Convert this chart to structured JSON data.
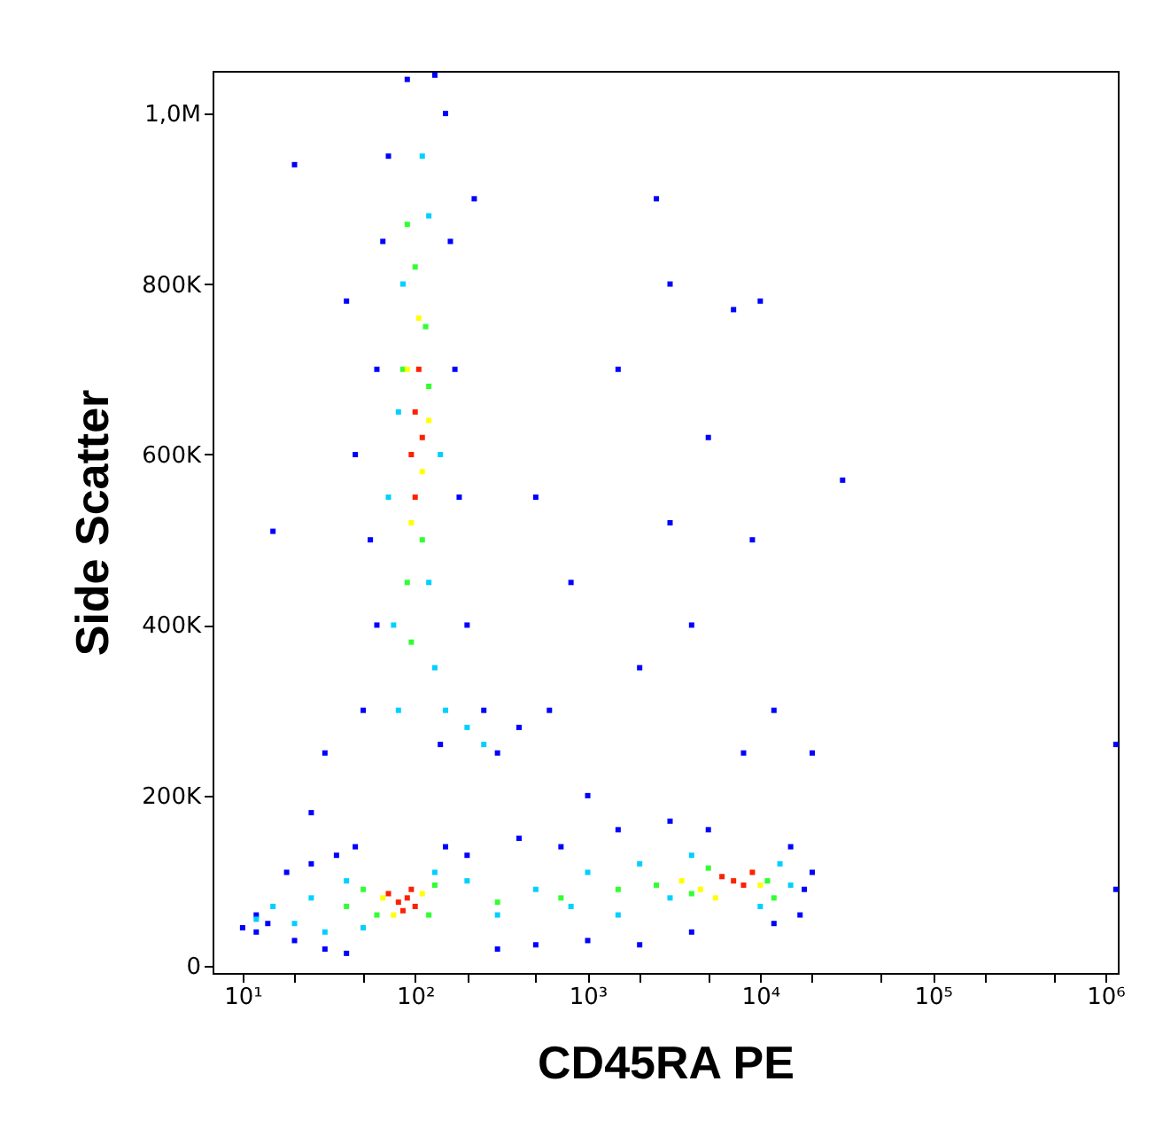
{
  "chart_data": {
    "type": "scatter",
    "xlabel": "CD45RA PE",
    "ylabel": "Side Scatter",
    "log": "x",
    "grid": false,
    "marker": "square",
    "xlim": [
      6.7,
      1180000
    ],
    "ylim": [
      -8000,
      1050000
    ],
    "xticks": [
      {
        "value": 10,
        "label": "10¹"
      },
      {
        "value": 20,
        "label": null
      },
      {
        "value": 50,
        "label": null
      },
      {
        "value": 100,
        "label": "10²"
      },
      {
        "value": 200,
        "label": null
      },
      {
        "value": 500,
        "label": null
      },
      {
        "value": 1000,
        "label": "10³"
      },
      {
        "value": 2000,
        "label": null
      },
      {
        "value": 5000,
        "label": null
      },
      {
        "value": 10000,
        "label": "10⁴"
      },
      {
        "value": 20000,
        "label": null
      },
      {
        "value": 50000,
        "label": null
      },
      {
        "value": 100000,
        "label": "10⁵"
      },
      {
        "value": 200000,
        "label": null
      },
      {
        "value": 500000,
        "label": null
      },
      {
        "value": 1000000,
        "label": "10⁶"
      }
    ],
    "yticks": [
      0,
      {
        "value": 200000,
        "label": "200K"
      },
      {
        "value": 400000,
        "label": "400K"
      },
      {
        "value": 600000,
        "label": "600K"
      },
      {
        "value": 800000,
        "label": "800K"
      },
      {
        "value": 1000000,
        "label": "1,0M"
      }
    ],
    "series": [
      {
        "color": "#0000ff",
        "x": [
          12,
          12,
          14,
          18,
          20,
          25,
          30,
          35,
          40,
          45,
          150,
          200,
          300,
          400,
          500,
          700,
          1000,
          1500,
          2000,
          3000,
          4000,
          5000,
          12000,
          15000,
          18000,
          20000,
          17000,
          10,
          50,
          55,
          60,
          65,
          70,
          150,
          160,
          170,
          180,
          200,
          250,
          300,
          400,
          220,
          90,
          130,
          140,
          60,
          45,
          40,
          20,
          15,
          30,
          25,
          500,
          1500,
          3000,
          5000,
          7000,
          10000,
          9000,
          4000,
          2000,
          800,
          30000,
          12000,
          20000,
          1150000,
          1150000,
          600,
          2500,
          8000,
          1000,
          3000
        ],
        "values": [
          60000,
          40000,
          50000,
          110000,
          30000,
          120000,
          20000,
          130000,
          15000,
          140000,
          140000,
          130000,
          20000,
          150000,
          25000,
          140000,
          30000,
          160000,
          25000,
          170000,
          40000,
          160000,
          50000,
          140000,
          90000,
          110000,
          60000,
          45000,
          300000,
          500000,
          700000,
          850000,
          950000,
          1000000,
          850000,
          700000,
          550000,
          400000,
          300000,
          250000,
          280000,
          900000,
          1040000,
          1045000,
          260000,
          400000,
          600000,
          780000,
          940000,
          510000,
          250000,
          180000,
          550000,
          700000,
          800000,
          620000,
          770000,
          780000,
          500000,
          400000,
          350000,
          450000,
          570000,
          300000,
          250000,
          260000,
          90000,
          300000,
          900000,
          250000,
          200000,
          520000
        ]
      },
      {
        "color": "#00d0ff",
        "x": [
          75,
          80,
          120,
          130,
          85,
          120,
          110,
          80,
          140,
          70,
          150,
          200,
          250,
          20,
          25,
          30,
          40,
          50,
          130,
          200,
          300,
          500,
          800,
          1000,
          1500,
          2000,
          3000,
          4000,
          10000,
          13000,
          15000,
          15,
          12
        ],
        "values": [
          400000,
          300000,
          450000,
          350000,
          800000,
          880000,
          950000,
          650000,
          600000,
          550000,
          300000,
          280000,
          260000,
          50000,
          80000,
          40000,
          100000,
          45000,
          110000,
          100000,
          60000,
          90000,
          70000,
          110000,
          60000,
          120000,
          80000,
          130000,
          70000,
          120000,
          95000,
          70000,
          55000
        ]
      },
      {
        "color": "#30ff30",
        "x": [
          60,
          50,
          120,
          130,
          40,
          300,
          700,
          1500,
          2500,
          4000,
          5000,
          11000,
          12000,
          90,
          110,
          85,
          115,
          100,
          90,
          120,
          95
        ],
        "values": [
          60000,
          90000,
          60000,
          95000,
          70000,
          75000,
          80000,
          90000,
          95000,
          85000,
          115000,
          100000,
          80000,
          450000,
          500000,
          700000,
          750000,
          820000,
          870000,
          680000,
          380000
        ]
      },
      {
        "color": "#ffff00",
        "x": [
          65,
          110,
          75,
          3500,
          4500,
          10000,
          5500,
          95,
          110,
          90,
          105,
          120
        ],
        "values": [
          80000,
          85000,
          60000,
          100000,
          90000,
          95000,
          80000,
          520000,
          580000,
          700000,
          760000,
          640000
        ]
      },
      {
        "color": "#ff2000",
        "x": [
          80,
          90,
          100,
          70,
          85,
          95,
          7000,
          8000,
          6000,
          9000,
          100,
          95,
          105,
          100,
          110
        ],
        "values": [
          75000,
          80000,
          70000,
          85000,
          65000,
          90000,
          100000,
          95000,
          105000,
          110000,
          650000,
          600000,
          700000,
          550000,
          620000
        ]
      }
    ]
  }
}
